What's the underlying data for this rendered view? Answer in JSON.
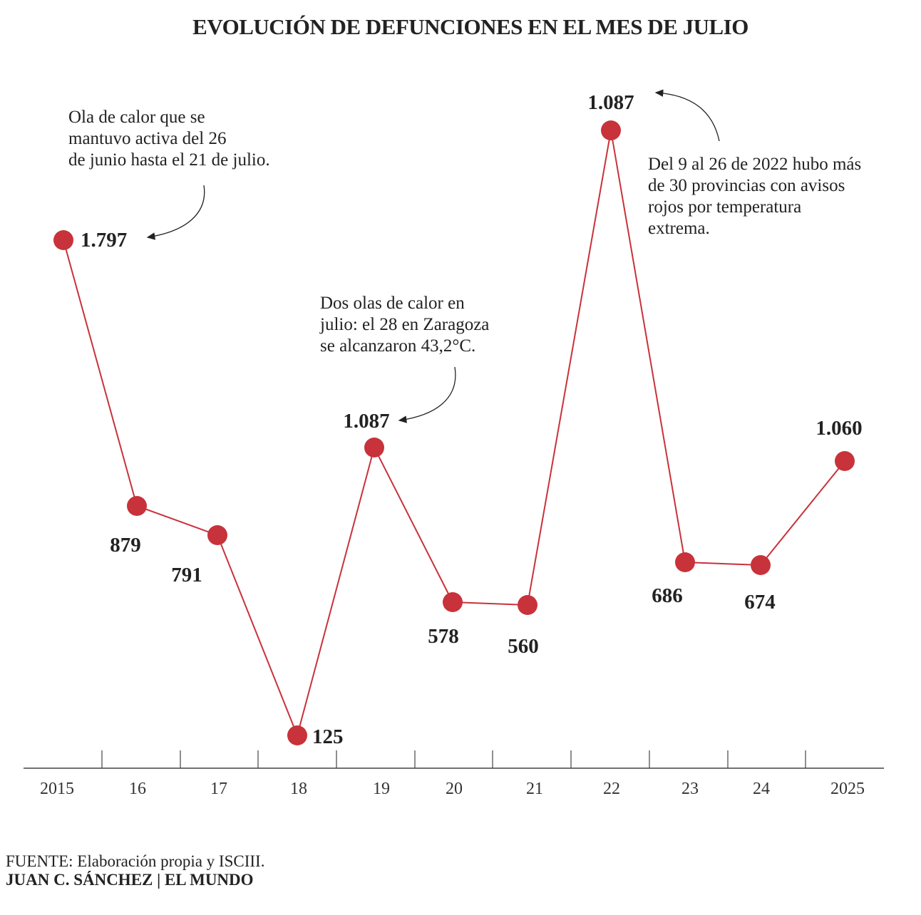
{
  "title": "EVOLUCIÓN DE DEFUNCIONES EN EL MES DE JULIO",
  "chart_data": {
    "type": "line",
    "categories": [
      "2015",
      "16",
      "17",
      "18",
      "19",
      "20",
      "21",
      "22",
      "23",
      "24",
      "2025"
    ],
    "values": [
      1797,
      879,
      791,
      125,
      1087,
      578,
      560,
      1087,
      686,
      674,
      1060
    ],
    "data_labels": [
      "1.797",
      "879",
      "791",
      "125",
      "1.087",
      "578",
      "560",
      "1.087",
      "686",
      "674",
      "1.060"
    ],
    "color": "#c8323a",
    "grid": false,
    "annotations": [
      "Ola de calor que se\nmantuvo activa del 26\nde junio hasta el 21 de julio.",
      "Dos olas de calor en\njulio: el 28 en Zaragoza\nse alcanzaron 43,2°C.",
      "Del 9 al 26 de 2022 hubo más\nde 30 provincias con avisos\nrojos por temperatura\nextrema."
    ]
  },
  "footer": {
    "source": "FUENTE: Elaboración propia y ISCIII.",
    "credit": "JUAN C. SÁNCHEZ | EL MUNDO"
  }
}
